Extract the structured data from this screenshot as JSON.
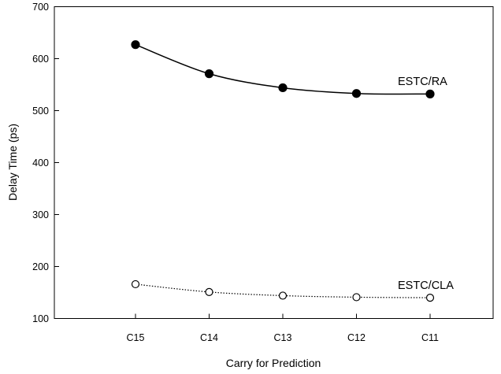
{
  "chart_data": {
    "type": "line",
    "categories": [
      "C15",
      "C14",
      "C13",
      "C12",
      "C11"
    ],
    "xlabel": "Carry for Prediction",
    "ylabel": "Delay Time (ps)",
    "ylim": [
      100,
      700
    ],
    "yticks": [
      100,
      200,
      300,
      400,
      500,
      600,
      700
    ],
    "grid": false,
    "series": [
      {
        "name": "ESTC/RA",
        "values": [
          627,
          571,
          544,
          533,
          532
        ],
        "marker": "filled-circle",
        "line": "solid",
        "color": "#000000"
      },
      {
        "name": "ESTC/CLA",
        "values": [
          166,
          151,
          144,
          141,
          140
        ],
        "marker": "open-circle",
        "line": "dotted",
        "color": "#000000"
      }
    ]
  }
}
